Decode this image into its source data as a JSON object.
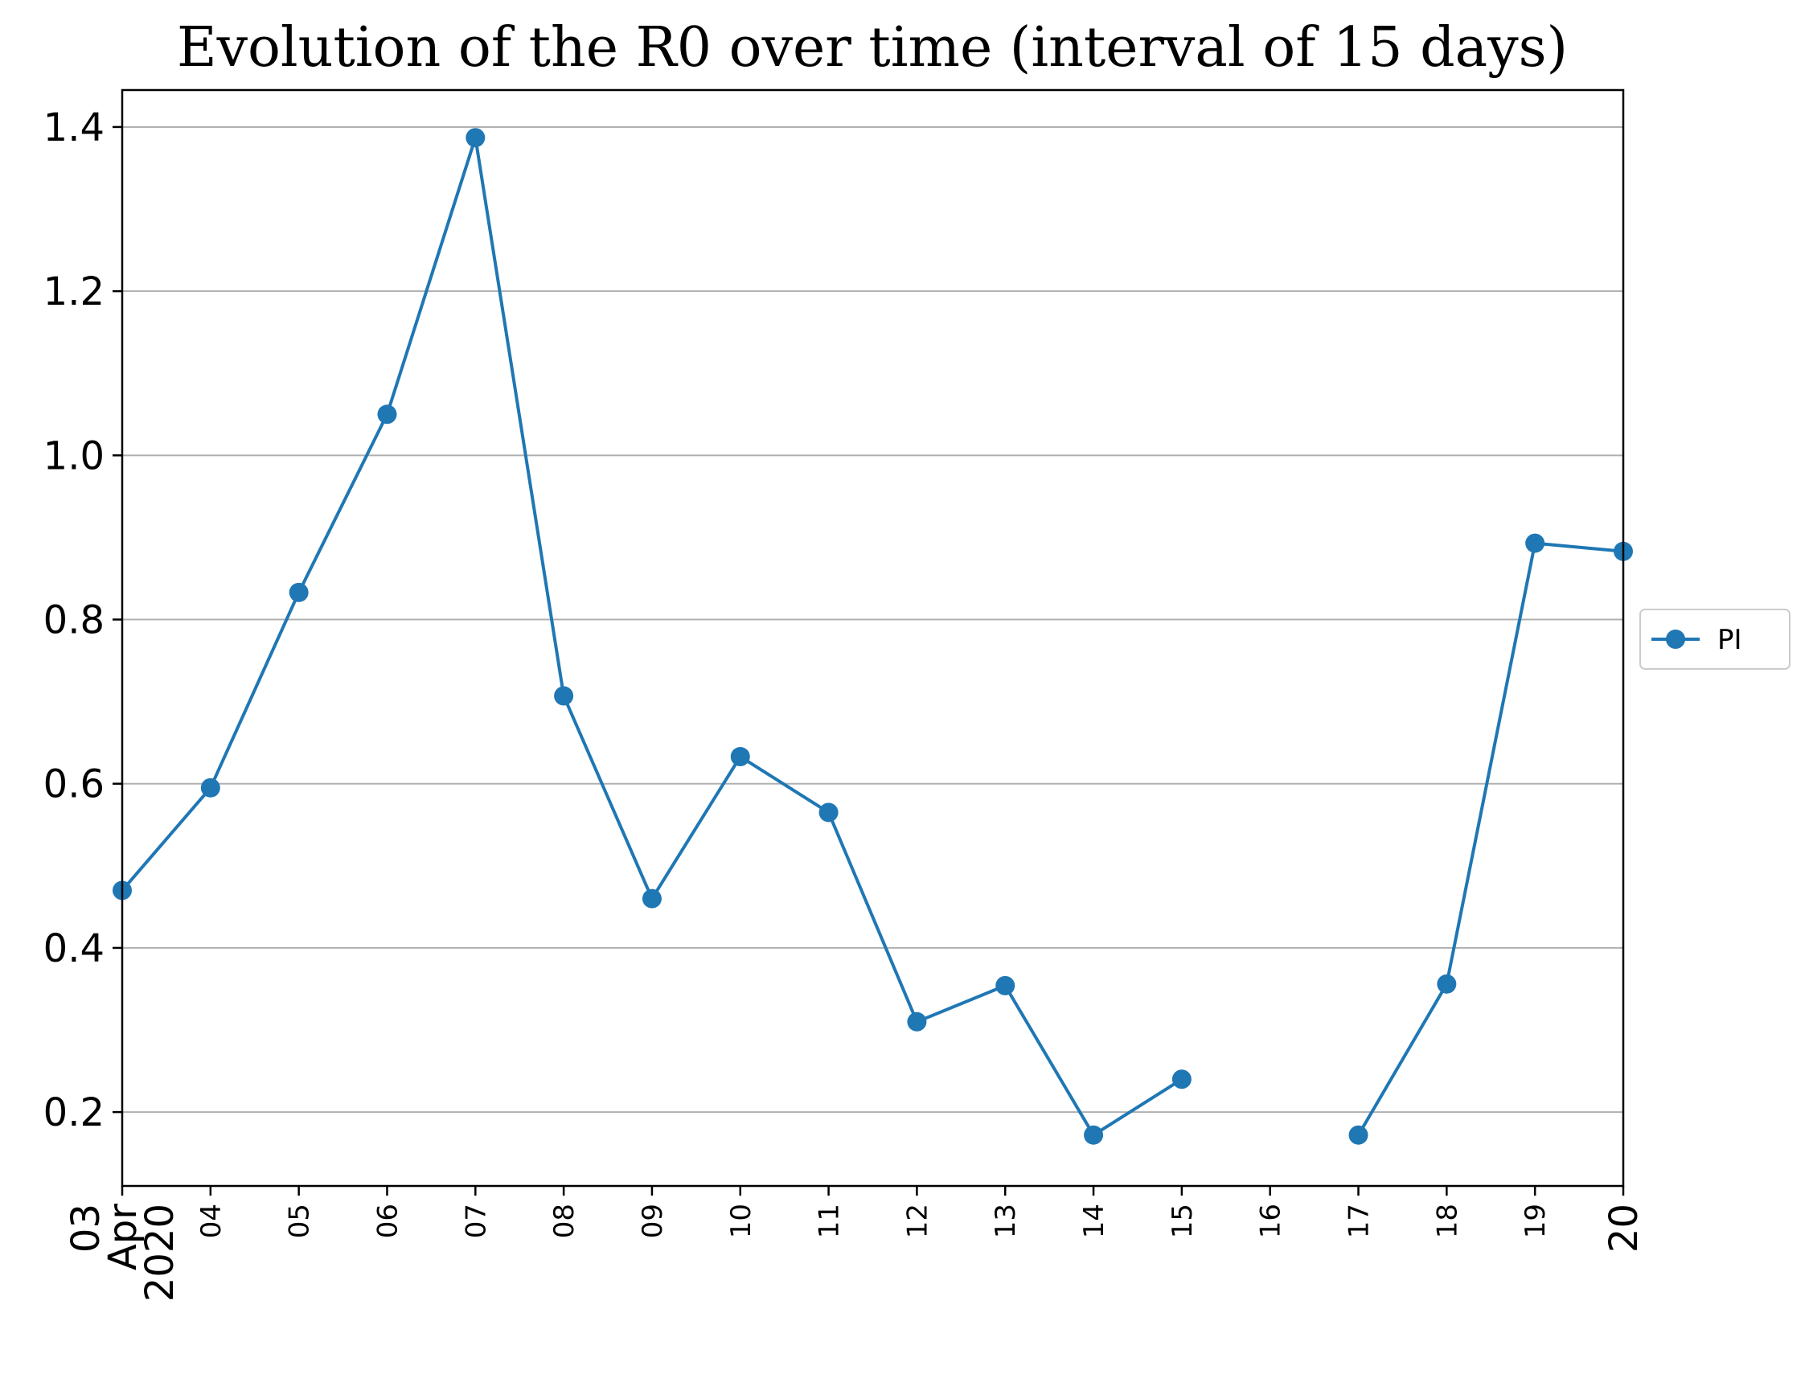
{
  "chart_data": {
    "type": "line",
    "title": "Evolution of the R0 over time (interval of 15 days)",
    "xlabel": "",
    "ylabel": "",
    "ylim": [
      0.11,
      1.445
    ],
    "yticks": [
      "0.2",
      "0.4",
      "0.6",
      "0.8",
      "1.0",
      "1.2",
      "1.4"
    ],
    "x_dates": [
      "2020-04-03",
      "2020-04-04",
      "2020-04-05",
      "2020-04-06",
      "2020-04-07",
      "2020-04-08",
      "2020-04-09",
      "2020-04-10",
      "2020-04-11",
      "2020-04-12",
      "2020-04-13",
      "2020-04-14",
      "2020-04-15",
      "2020-04-16",
      "2020-04-17",
      "2020-04-18",
      "2020-04-19",
      "2020-04-20"
    ],
    "xtick_labels": [
      {
        "lines": [
          "03",
          "Apr",
          "2020"
        ],
        "size": "big"
      },
      {
        "lines": [
          "04"
        ],
        "size": "small"
      },
      {
        "lines": [
          "05"
        ],
        "size": "small"
      },
      {
        "lines": [
          "06"
        ],
        "size": "small"
      },
      {
        "lines": [
          "07"
        ],
        "size": "small"
      },
      {
        "lines": [
          "08"
        ],
        "size": "small"
      },
      {
        "lines": [
          "09"
        ],
        "size": "small"
      },
      {
        "lines": [
          "10"
        ],
        "size": "small"
      },
      {
        "lines": [
          "11"
        ],
        "size": "small"
      },
      {
        "lines": [
          "12"
        ],
        "size": "small"
      },
      {
        "lines": [
          "13"
        ],
        "size": "small"
      },
      {
        "lines": [
          "14"
        ],
        "size": "small"
      },
      {
        "lines": [
          "15"
        ],
        "size": "small"
      },
      {
        "lines": [
          "16"
        ],
        "size": "small"
      },
      {
        "lines": [
          "17"
        ],
        "size": "small"
      },
      {
        "lines": [
          "18"
        ],
        "size": "small"
      },
      {
        "lines": [
          "19"
        ],
        "size": "small"
      },
      {
        "lines": [
          "20"
        ],
        "size": "big"
      }
    ],
    "grid": "y",
    "legend_position": "right-outside",
    "series": [
      {
        "name": "PI",
        "color": "#1f77b4",
        "values": [
          0.47,
          0.595,
          0.833,
          1.05,
          1.387,
          0.707,
          0.46,
          0.633,
          0.565,
          0.31,
          0.354,
          0.172,
          0.24,
          null,
          0.172,
          0.356,
          0.893,
          0.883
        ]
      }
    ]
  }
}
